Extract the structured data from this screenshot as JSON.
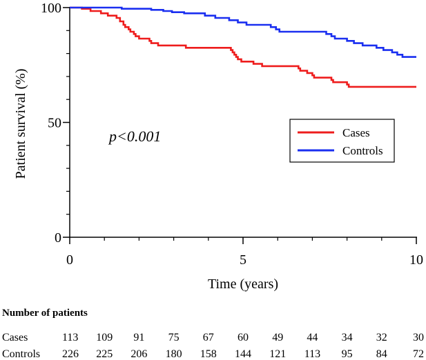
{
  "chart_data": {
    "type": "line",
    "subtype": "kaplan-meier",
    "xlabel": "Time (years)",
    "ylabel": "Patient survival (%)",
    "xlim": [
      0,
      10
    ],
    "ylim": [
      0,
      100
    ],
    "x_ticks": [
      0,
      5,
      10
    ],
    "x_minor_step": 1,
    "y_ticks": [
      0,
      50,
      100
    ],
    "y_minor_step": 10,
    "annotation": "p<0.001",
    "legend_position": "center-right",
    "series": [
      {
        "name": "Cases",
        "color": "#ee1c1c",
        "steps": [
          [
            0,
            100
          ],
          [
            0.35,
            99.5
          ],
          [
            0.6,
            98.5
          ],
          [
            0.9,
            97.5
          ],
          [
            1.1,
            96.5
          ],
          [
            1.35,
            95.5
          ],
          [
            1.45,
            94
          ],
          [
            1.55,
            92.5
          ],
          [
            1.6,
            91.5
          ],
          [
            1.7,
            90.5
          ],
          [
            1.75,
            89.5
          ],
          [
            1.85,
            88.5
          ],
          [
            1.9,
            87.5
          ],
          [
            2.0,
            86.5
          ],
          [
            2.3,
            85.5
          ],
          [
            2.35,
            84.5
          ],
          [
            2.55,
            83.5
          ],
          [
            3.35,
            82.5
          ],
          [
            4.65,
            81.5
          ],
          [
            4.7,
            80.5
          ],
          [
            4.75,
            79.5
          ],
          [
            4.8,
            78.5
          ],
          [
            4.85,
            77.5
          ],
          [
            4.95,
            76.5
          ],
          [
            5.3,
            75.5
          ],
          [
            5.55,
            74.5
          ],
          [
            6.6,
            73.5
          ],
          [
            6.65,
            72.5
          ],
          [
            6.85,
            71.5
          ],
          [
            7.0,
            70.5
          ],
          [
            7.05,
            69.5
          ],
          [
            7.55,
            68.5
          ],
          [
            7.6,
            67.5
          ],
          [
            8.0,
            66.5
          ],
          [
            8.05,
            65.5
          ]
        ],
        "end_x": 10
      },
      {
        "name": "Controls",
        "color": "#1a2ff0",
        "steps": [
          [
            0,
            100
          ],
          [
            1.5,
            99.5
          ],
          [
            2.35,
            99
          ],
          [
            2.7,
            98.5
          ],
          [
            2.95,
            98
          ],
          [
            3.3,
            97.5
          ],
          [
            3.9,
            96.5
          ],
          [
            4.2,
            95.5
          ],
          [
            4.6,
            94.5
          ],
          [
            4.85,
            93.5
          ],
          [
            5.1,
            92.5
          ],
          [
            5.8,
            91.5
          ],
          [
            5.95,
            90.5
          ],
          [
            6.05,
            89.5
          ],
          [
            7.4,
            88.5
          ],
          [
            7.55,
            87.5
          ],
          [
            7.65,
            86.5
          ],
          [
            8.0,
            85.5
          ],
          [
            8.2,
            84.5
          ],
          [
            8.45,
            83.5
          ],
          [
            8.85,
            82.5
          ],
          [
            9.05,
            81.5
          ],
          [
            9.3,
            80.5
          ],
          [
            9.45,
            79.5
          ],
          [
            9.6,
            78.5
          ]
        ],
        "end_x": 10
      }
    ]
  },
  "risk_table": {
    "title": "Number of patients",
    "rows": [
      {
        "label": "Cases",
        "values": [
          "113",
          "109",
          "91",
          "75",
          "67",
          "60",
          "49",
          "44",
          "34",
          "32",
          "30"
        ]
      },
      {
        "label": "Controls",
        "values": [
          "226",
          "225",
          "206",
          "180",
          "158",
          "144",
          "121",
          "113",
          "95",
          "84",
          "72"
        ]
      }
    ]
  }
}
